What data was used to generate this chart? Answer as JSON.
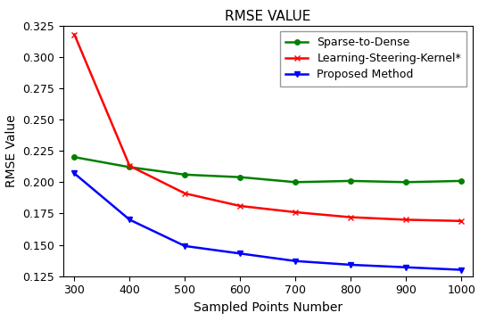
{
  "x": [
    300,
    400,
    500,
    600,
    700,
    800,
    900,
    1000
  ],
  "sparse_to_dense": [
    0.22,
    0.212,
    0.206,
    0.204,
    0.2,
    0.201,
    0.2,
    0.201
  ],
  "learning_steering_kernel": [
    0.318,
    0.213,
    0.191,
    0.181,
    0.176,
    0.172,
    0.17,
    0.169
  ],
  "proposed_method": [
    0.207,
    0.17,
    0.149,
    0.143,
    0.137,
    0.134,
    0.132,
    0.13
  ],
  "colors": {
    "sparse_to_dense": "#008000",
    "learning_steering_kernel": "#ff0000",
    "proposed_method": "#0000ff"
  },
  "title": "RMSE VALUE",
  "xlabel": "Sampled Points Number",
  "ylabel": "RMSE Value",
  "ylim": [
    0.125,
    0.325
  ],
  "xlim": [
    280,
    1020
  ],
  "yticks": [
    0.125,
    0.15,
    0.175,
    0.2,
    0.225,
    0.25,
    0.275,
    0.3,
    0.325
  ],
  "xticks": [
    300,
    400,
    500,
    600,
    700,
    800,
    900,
    1000
  ],
  "title_fontsize": 11,
  "label_fontsize": 10,
  "tick_fontsize": 9,
  "legend_fontsize": 9
}
